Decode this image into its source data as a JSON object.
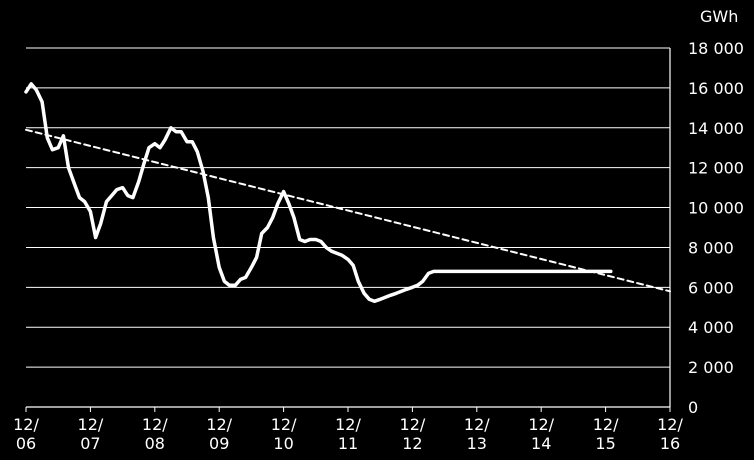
{
  "chart_data": {
    "type": "line",
    "title": "",
    "xlabel": "",
    "ylabel": "",
    "y_unit_label": "GWh",
    "ylim": [
      0,
      18000
    ],
    "grid": true,
    "y_ticks": [
      "0",
      "2 000",
      "4 000",
      "6 000",
      "8 000",
      "10 000",
      "12 000",
      "14 000",
      "16 000",
      "18 000"
    ],
    "x_ticks": [
      {
        "line1": "12/",
        "line2": "06"
      },
      {
        "line1": "12/",
        "line2": "07"
      },
      {
        "line1": "12/",
        "line2": "08"
      },
      {
        "line1": "12/",
        "line2": "09"
      },
      {
        "line1": "12/",
        "line2": "10"
      },
      {
        "line1": "12/",
        "line2": "11"
      },
      {
        "line1": "12/",
        "line2": "12"
      },
      {
        "line1": "12/",
        "line2": "13"
      },
      {
        "line1": "12/",
        "line2": "14"
      },
      {
        "line1": "12/",
        "line2": "15"
      },
      {
        "line1": "12/",
        "line2": "16"
      }
    ],
    "series": [
      {
        "style": "solid",
        "color": "#ffffff",
        "x_years": [
          2006.92,
          2007.0,
          2007.08,
          2007.17,
          2007.25,
          2007.33,
          2007.42,
          2007.5,
          2007.58,
          2007.67,
          2007.75,
          2007.83,
          2007.92,
          2008.0,
          2008.08,
          2008.17,
          2008.25,
          2008.33,
          2008.42,
          2008.5,
          2008.58,
          2008.67,
          2008.75,
          2008.83,
          2008.92,
          2009.0,
          2009.08,
          2009.17,
          2009.25,
          2009.33,
          2009.42,
          2009.5,
          2009.58,
          2009.67,
          2009.75,
          2009.83,
          2009.92,
          2010.0,
          2010.08,
          2010.17,
          2010.25,
          2010.33,
          2010.42,
          2010.5,
          2010.58,
          2010.67,
          2010.75,
          2010.83,
          2010.92,
          2011.0,
          2011.08,
          2011.17,
          2011.25,
          2011.33,
          2011.42,
          2011.5,
          2011.58,
          2011.67,
          2011.75,
          2011.83,
          2011.92,
          2012.0,
          2012.08,
          2012.17,
          2012.25,
          2012.33,
          2012.42,
          2012.5,
          2012.58,
          2012.67,
          2012.75,
          2012.83,
          2012.92,
          2013.0,
          2013.08,
          2013.17,
          2013.25,
          2013.33,
          2013.42,
          2013.5,
          2013.58,
          2013.67,
          2013.75,
          2013.83,
          2013.92,
          2014.0,
          2014.08,
          2014.17,
          2014.25,
          2014.33,
          2014.42,
          2014.5,
          2014.58,
          2014.67,
          2014.75,
          2014.83,
          2014.92,
          2015.0,
          2015.08,
          2015.17,
          2015.25,
          2015.33,
          2015.42,
          2015.5,
          2015.58,
          2015.67,
          2015.75,
          2015.83,
          2015.92,
          2016.0
        ],
        "values": [
          15800,
          16200,
          15900,
          15300,
          13500,
          12900,
          13000,
          13600,
          12000,
          11200,
          10500,
          10300,
          9800,
          8500,
          9200,
          10300,
          10600,
          10900,
          11000,
          10600,
          10500,
          11300,
          12200,
          13000,
          13200,
          13000,
          13400,
          14000,
          13800,
          13800,
          13300,
          13300,
          12800,
          11800,
          10500,
          8500,
          7000,
          6300,
          6100,
          6100,
          6400,
          6500,
          7000,
          7500,
          8700,
          9000,
          9500,
          10200,
          10800,
          10200,
          9500,
          8400,
          8300,
          8400,
          8400,
          8300,
          8000,
          7800,
          7700,
          7600,
          7400,
          7100,
          6300,
          5700,
          5400,
          5300,
          5400,
          5500,
          5600,
          5700,
          5800,
          5900,
          6000,
          6100,
          6300,
          6700,
          6800,
          6800,
          6800,
          6800,
          6800,
          6800,
          6800,
          6800,
          6800,
          6800,
          6800,
          6800,
          6800,
          6800,
          6800,
          6800,
          6800,
          6800,
          6800,
          6800,
          6800,
          6800,
          6800,
          6800,
          6800,
          6800,
          6800,
          6800,
          6800,
          6800,
          6800,
          6800,
          6800,
          6800
        ]
      },
      {
        "style": "dashed",
        "color": "#ffffff",
        "x_years": [
          2006.92,
          2016.92
        ],
        "values": [
          13900,
          5800
        ]
      }
    ]
  }
}
